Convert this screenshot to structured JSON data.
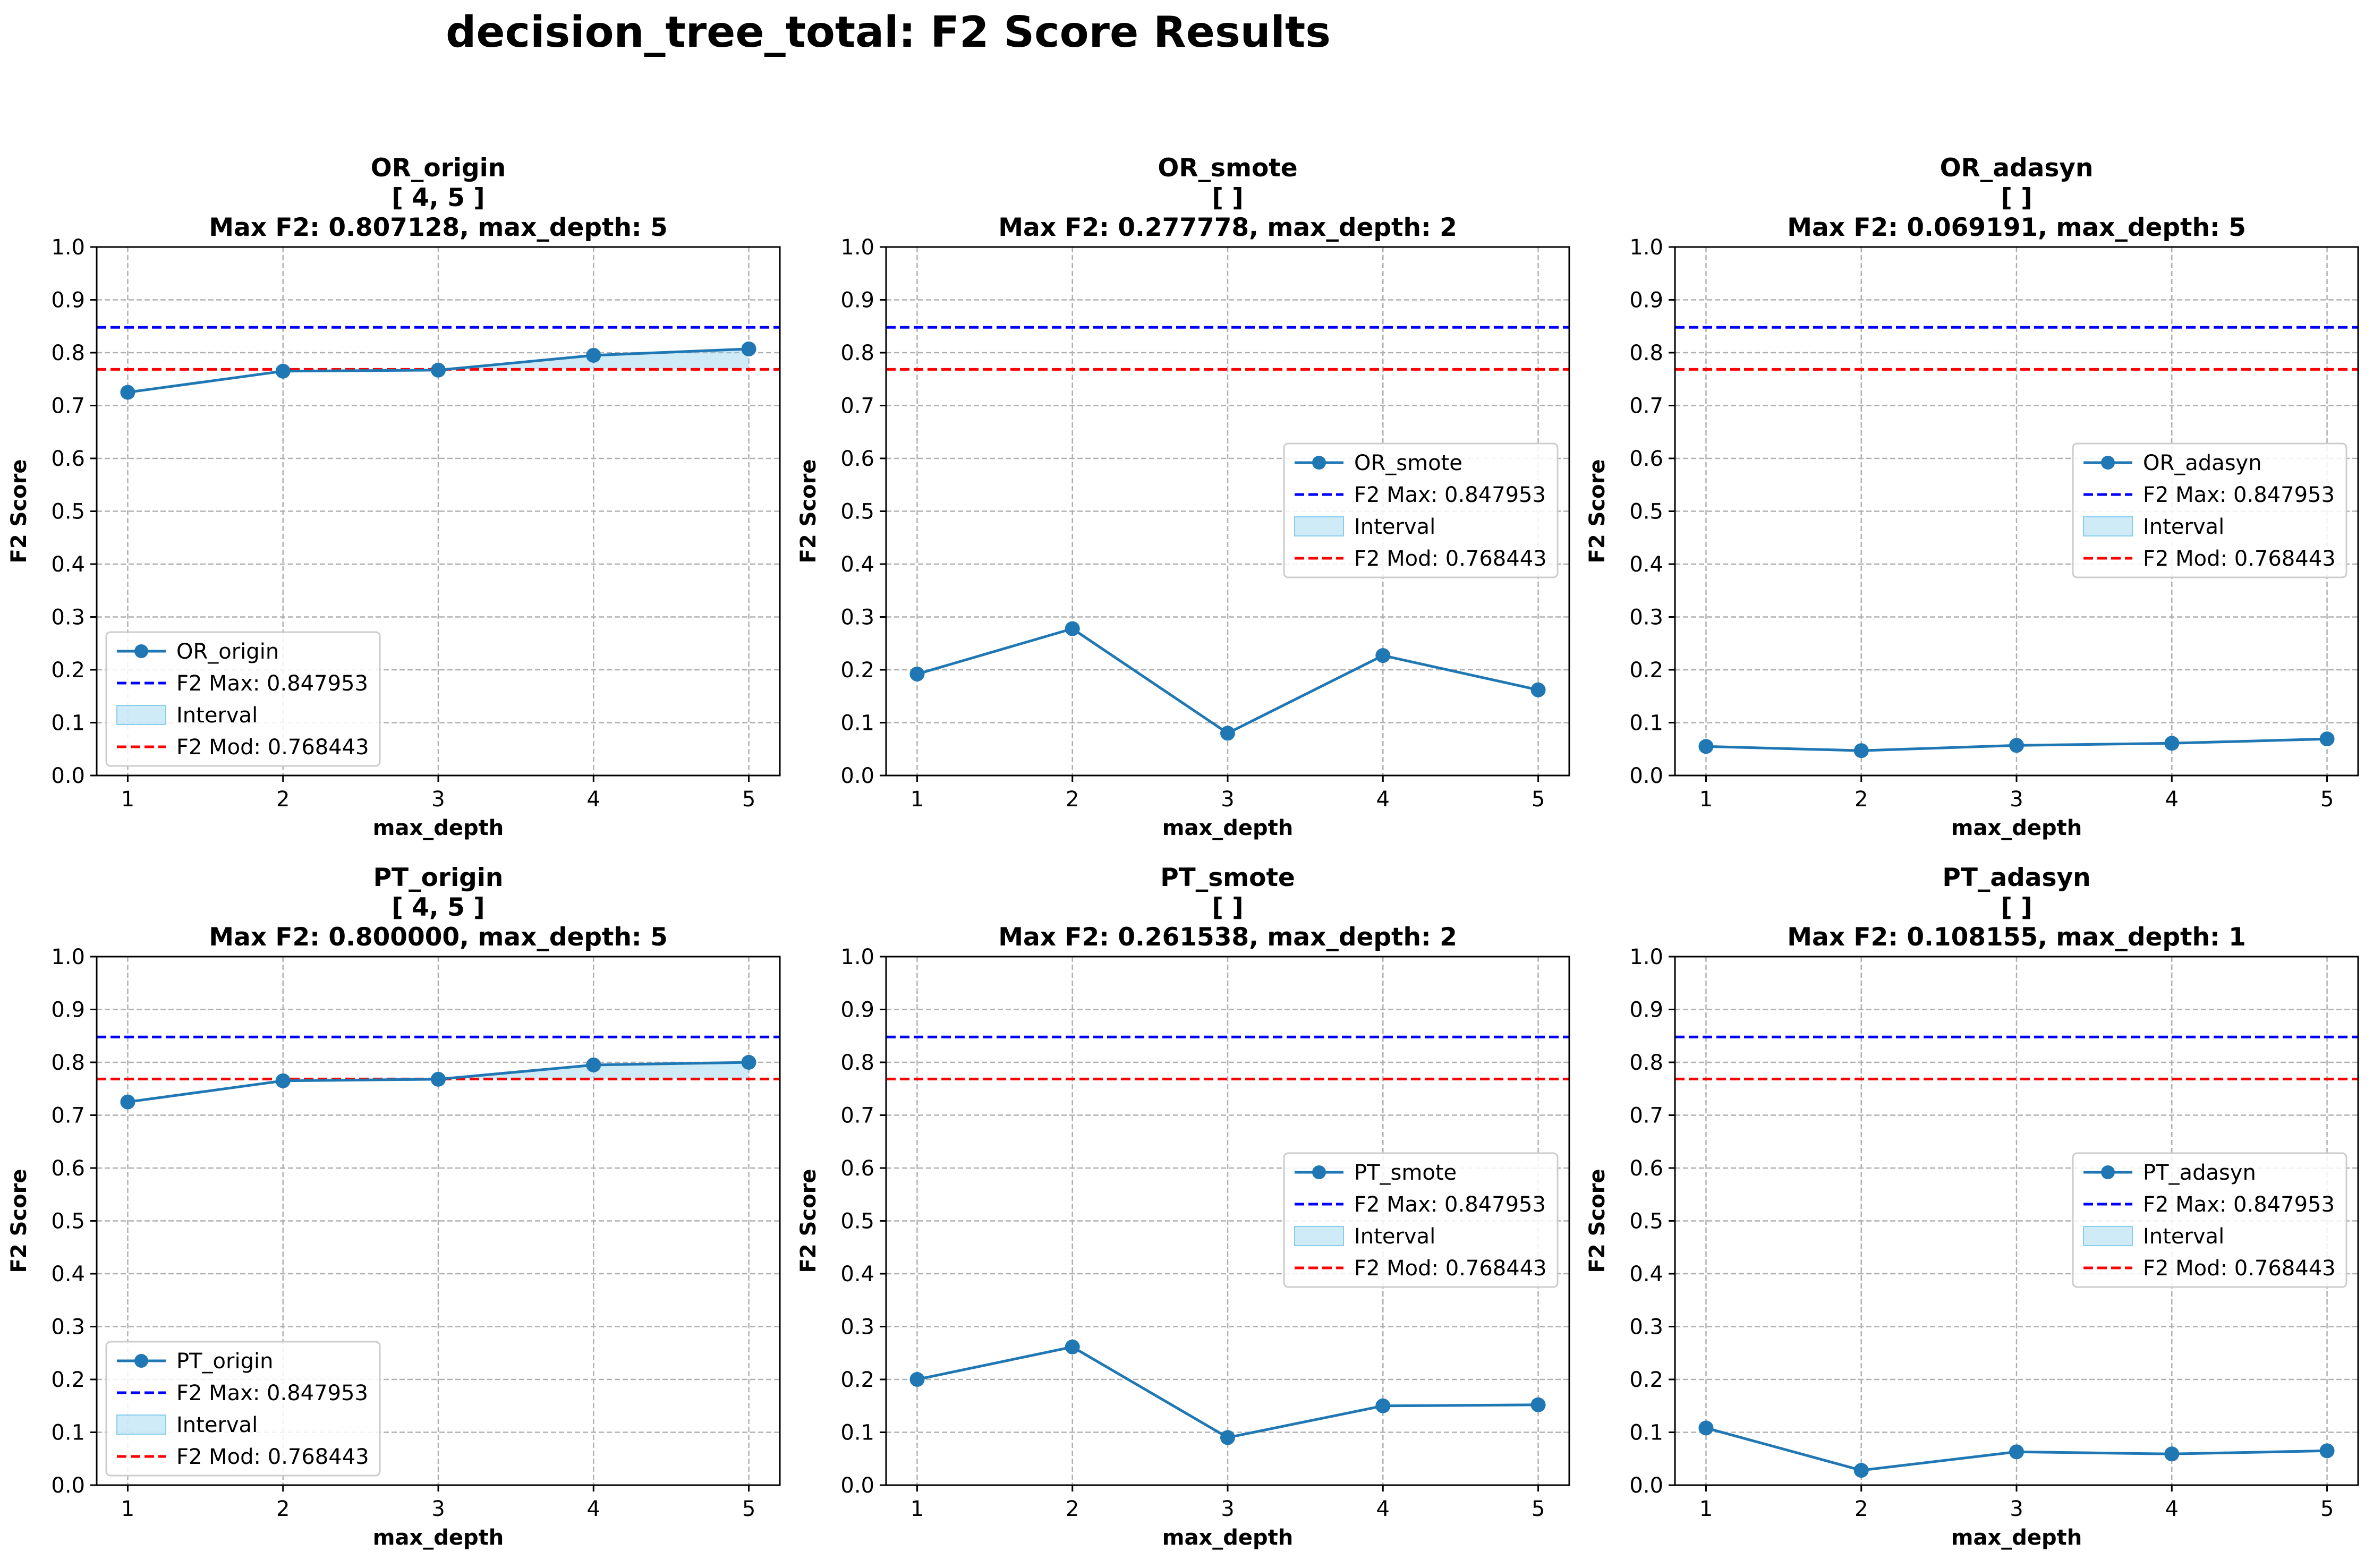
{
  "figure": {
    "title": "decision_tree_total: F2 Score Results"
  },
  "colors": {
    "series": "#1f77b4",
    "f2_max": "#0000ff",
    "f2_mod": "#ff0000",
    "interval": "#87ceeb"
  },
  "chart_data": [
    {
      "type": "line",
      "title": "OR_origin",
      "subtitle": "[ 4, 5 ]",
      "max_label": "Max F2: 0.807128, max_depth: 5",
      "xlabel": "max_depth",
      "ylabel": "F2 Score",
      "x": [
        1,
        2,
        3,
        4,
        5
      ],
      "x_ticks": [
        "1",
        "2",
        "3",
        "4",
        "5"
      ],
      "y_ticks": [
        "0.0",
        "0.1",
        "0.2",
        "0.3",
        "0.4",
        "0.5",
        "0.6",
        "0.7",
        "0.8",
        "0.9",
        "1.0"
      ],
      "ylim": [
        0,
        1
      ],
      "xlim": [
        0.8,
        5.2
      ],
      "grid": true,
      "legend_position": "lower-left",
      "series": [
        {
          "name": "OR_origin",
          "values": [
            0.725,
            0.765,
            0.767,
            0.795,
            0.807128
          ]
        }
      ],
      "f2_max": 0.847953,
      "f2_mod": 0.768443,
      "legend": [
        "OR_origin",
        "F2 Max: 0.847953",
        "Interval",
        "F2 Mod: 0.768443"
      ]
    },
    {
      "type": "line",
      "title": "OR_smote",
      "subtitle": "[  ]",
      "max_label": "Max F2: 0.277778, max_depth: 2",
      "xlabel": "max_depth",
      "ylabel": "F2 Score",
      "x": [
        1,
        2,
        3,
        4,
        5
      ],
      "x_ticks": [
        "1",
        "2",
        "3",
        "4",
        "5"
      ],
      "y_ticks": [
        "0.0",
        "0.1",
        "0.2",
        "0.3",
        "0.4",
        "0.5",
        "0.6",
        "0.7",
        "0.8",
        "0.9",
        "1.0"
      ],
      "ylim": [
        0,
        1
      ],
      "xlim": [
        0.8,
        5.2
      ],
      "grid": true,
      "legend_position": "center-right",
      "series": [
        {
          "name": "OR_smote",
          "values": [
            0.192,
            0.277778,
            0.08,
            0.227,
            0.162
          ]
        }
      ],
      "f2_max": 0.847953,
      "f2_mod": 0.768443,
      "legend": [
        "OR_smote",
        "F2 Max: 0.847953",
        "Interval",
        "F2 Mod: 0.768443"
      ]
    },
    {
      "type": "line",
      "title": "OR_adasyn",
      "subtitle": "[  ]",
      "max_label": "Max F2: 0.069191, max_depth: 5",
      "xlabel": "max_depth",
      "ylabel": "F2 Score",
      "x": [
        1,
        2,
        3,
        4,
        5
      ],
      "x_ticks": [
        "1",
        "2",
        "3",
        "4",
        "5"
      ],
      "y_ticks": [
        "0.0",
        "0.1",
        "0.2",
        "0.3",
        "0.4",
        "0.5",
        "0.6",
        "0.7",
        "0.8",
        "0.9",
        "1.0"
      ],
      "ylim": [
        0,
        1
      ],
      "xlim": [
        0.8,
        5.2
      ],
      "grid": true,
      "legend_position": "center-right",
      "series": [
        {
          "name": "OR_adasyn",
          "values": [
            0.055,
            0.047,
            0.057,
            0.061,
            0.069191
          ]
        }
      ],
      "f2_max": 0.847953,
      "f2_mod": 0.768443,
      "legend": [
        "OR_adasyn",
        "F2 Max: 0.847953",
        "Interval",
        "F2 Mod: 0.768443"
      ]
    },
    {
      "type": "line",
      "title": "PT_origin",
      "subtitle": "[ 4, 5 ]",
      "max_label": "Max F2: 0.800000, max_depth: 5",
      "xlabel": "max_depth",
      "ylabel": "F2 Score",
      "x": [
        1,
        2,
        3,
        4,
        5
      ],
      "x_ticks": [
        "1",
        "2",
        "3",
        "4",
        "5"
      ],
      "y_ticks": [
        "0.0",
        "0.1",
        "0.2",
        "0.3",
        "0.4",
        "0.5",
        "0.6",
        "0.7",
        "0.8",
        "0.9",
        "1.0"
      ],
      "ylim": [
        0,
        1
      ],
      "xlim": [
        0.8,
        5.2
      ],
      "grid": true,
      "legend_position": "lower-left",
      "series": [
        {
          "name": "PT_origin",
          "values": [
            0.725,
            0.765,
            0.768,
            0.795,
            0.8
          ]
        }
      ],
      "f2_max": 0.847953,
      "f2_mod": 0.768443,
      "legend": [
        "PT_origin",
        "F2 Max: 0.847953",
        "Interval",
        "F2 Mod: 0.768443"
      ]
    },
    {
      "type": "line",
      "title": "PT_smote",
      "subtitle": "[  ]",
      "max_label": "Max F2: 0.261538, max_depth: 2",
      "xlabel": "max_depth",
      "ylabel": "F2 Score",
      "x": [
        1,
        2,
        3,
        4,
        5
      ],
      "x_ticks": [
        "1",
        "2",
        "3",
        "4",
        "5"
      ],
      "y_ticks": [
        "0.0",
        "0.1",
        "0.2",
        "0.3",
        "0.4",
        "0.5",
        "0.6",
        "0.7",
        "0.8",
        "0.9",
        "1.0"
      ],
      "ylim": [
        0,
        1
      ],
      "xlim": [
        0.8,
        5.2
      ],
      "grid": true,
      "legend_position": "center-right",
      "series": [
        {
          "name": "PT_smote",
          "values": [
            0.2,
            0.261538,
            0.09,
            0.15,
            0.152
          ]
        }
      ],
      "f2_max": 0.847953,
      "f2_mod": 0.768443,
      "legend": [
        "PT_smote",
        "F2 Max: 0.847953",
        "Interval",
        "F2 Mod: 0.768443"
      ]
    },
    {
      "type": "line",
      "title": "PT_adasyn",
      "subtitle": "[  ]",
      "max_label": "Max F2: 0.108155, max_depth: 1",
      "xlabel": "max_depth",
      "ylabel": "F2 Score",
      "x": [
        1,
        2,
        3,
        4,
        5
      ],
      "x_ticks": [
        "1",
        "2",
        "3",
        "4",
        "5"
      ],
      "y_ticks": [
        "0.0",
        "0.1",
        "0.2",
        "0.3",
        "0.4",
        "0.5",
        "0.6",
        "0.7",
        "0.8",
        "0.9",
        "1.0"
      ],
      "ylim": [
        0,
        1
      ],
      "xlim": [
        0.8,
        5.2
      ],
      "grid": true,
      "legend_position": "center-right",
      "series": [
        {
          "name": "PT_adasyn",
          "values": [
            0.108155,
            0.028,
            0.063,
            0.059,
            0.065
          ]
        }
      ],
      "f2_max": 0.847953,
      "f2_mod": 0.768443,
      "legend": [
        "PT_adasyn",
        "F2 Max: 0.847953",
        "Interval",
        "F2 Mod: 0.768443"
      ]
    }
  ]
}
